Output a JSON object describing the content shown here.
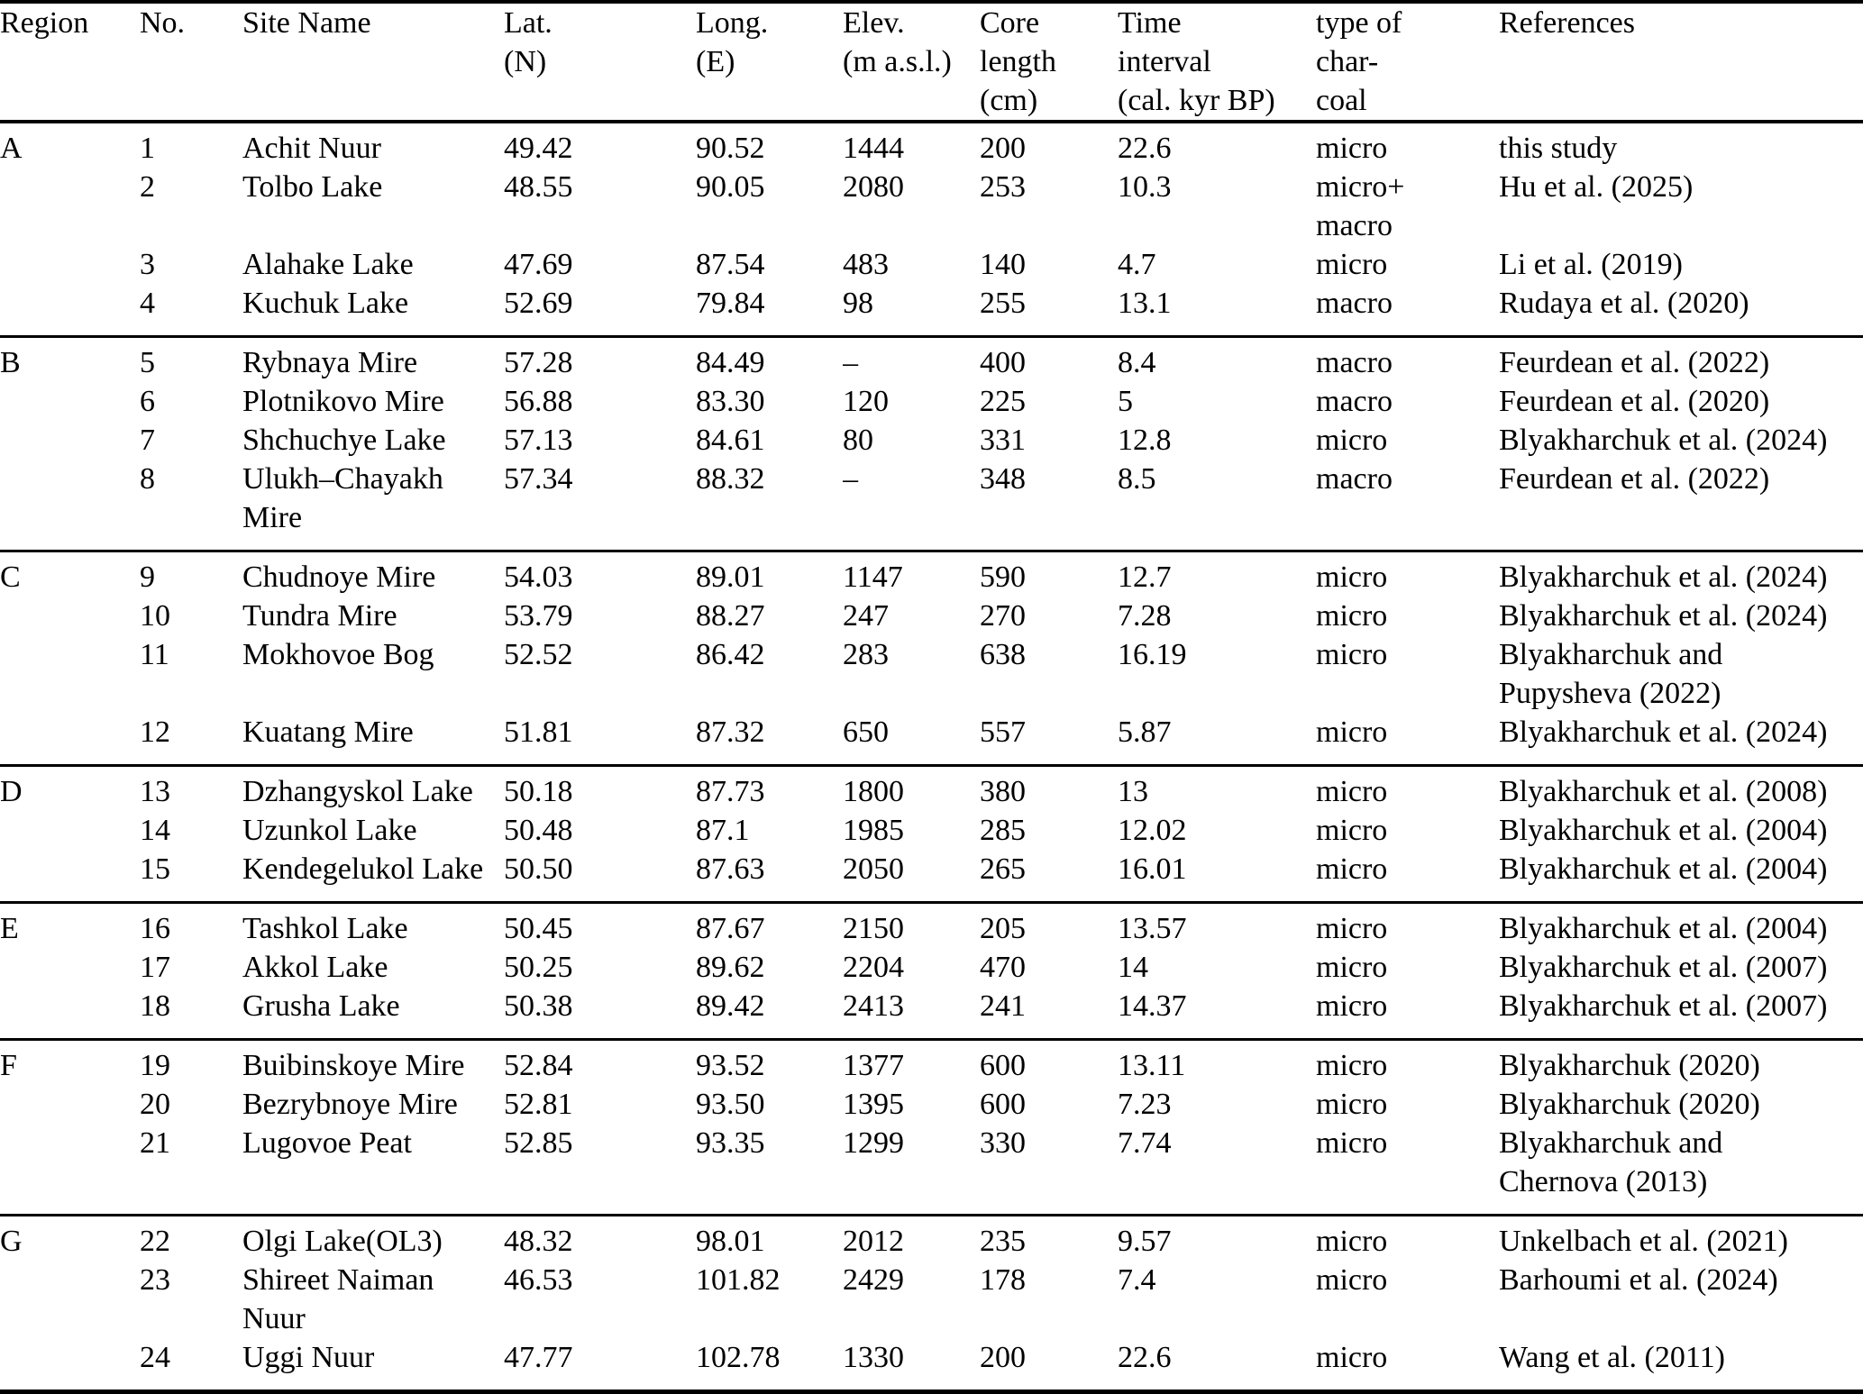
{
  "table": {
    "title": "study-sites-table",
    "columns": [
      {
        "id": "region",
        "lines": [
          "Region"
        ]
      },
      {
        "id": "no",
        "lines": [
          "No."
        ]
      },
      {
        "id": "site",
        "lines": [
          "Site Name"
        ]
      },
      {
        "id": "lat",
        "lines": [
          "Lat.",
          "(N)"
        ]
      },
      {
        "id": "long",
        "lines": [
          "Long.",
          "(E)"
        ]
      },
      {
        "id": "elev",
        "lines": [
          "Elev.",
          "(m a.s.l.)"
        ]
      },
      {
        "id": "core",
        "lines": [
          "Core",
          "length",
          "(cm)"
        ]
      },
      {
        "id": "time",
        "lines": [
          "Time",
          "interval",
          "(cal. kyr BP)"
        ]
      },
      {
        "id": "charcoal",
        "lines": [
          "type of",
          "char-",
          "coal"
        ]
      },
      {
        "id": "refs",
        "lines": [
          "References"
        ]
      }
    ],
    "groups": [
      {
        "region": "A",
        "rows": [
          {
            "no": "1",
            "site": "Achit Nuur",
            "lat": "49.42",
            "long": "90.52",
            "elev": "1444",
            "core": "200",
            "time": "22.6",
            "charcoal": [
              "micro"
            ],
            "refs": [
              "this study"
            ]
          },
          {
            "no": "2",
            "site": "Tolbo Lake",
            "lat": "48.55",
            "long": "90.05",
            "elev": "2080",
            "core": "253",
            "time": "10.3",
            "charcoal": [
              "micro+",
              "macro"
            ],
            "refs": [
              "Hu et al. (2025)"
            ]
          },
          {
            "no": "3",
            "site": "Alahake Lake",
            "lat": "47.69",
            "long": "87.54",
            "elev": "483",
            "core": "140",
            "time": "4.7",
            "charcoal": [
              "micro"
            ],
            "refs": [
              "Li et al. (2019)"
            ]
          },
          {
            "no": "4",
            "site": "Kuchuk Lake",
            "lat": "52.69",
            "long": "79.84",
            "elev": "98",
            "core": "255",
            "time": "13.1",
            "charcoal": [
              "macro"
            ],
            "refs": [
              "Rudaya et al. (2020)"
            ]
          }
        ]
      },
      {
        "region": "B",
        "rows": [
          {
            "no": "5",
            "site": "Rybnaya Mire",
            "lat": "57.28",
            "long": "84.49",
            "elev": "–",
            "core": "400",
            "time": "8.4",
            "charcoal": [
              "macro"
            ],
            "refs": [
              "Feurdean et al. (2022)"
            ]
          },
          {
            "no": "6",
            "site": "Plotnikovo Mire",
            "lat": "56.88",
            "long": "83.30",
            "elev": "120",
            "core": "225",
            "time": "5",
            "charcoal": [
              "macro"
            ],
            "refs": [
              "Feurdean et al. (2020)"
            ]
          },
          {
            "no": "7",
            "site": "Shchuchye Lake",
            "lat": "57.13",
            "long": "84.61",
            "elev": "80",
            "core": "331",
            "time": "12.8",
            "charcoal": [
              "micro"
            ],
            "refs": [
              "Blyakharchuk et al. (2024)"
            ]
          },
          {
            "no": "8",
            "site": "Ulukh–Chayakh Mire",
            "lat": "57.34",
            "long": "88.32",
            "elev": "–",
            "core": "348",
            "time": "8.5",
            "charcoal": [
              "macro"
            ],
            "refs": [
              "Feurdean et al. (2022)"
            ]
          }
        ]
      },
      {
        "region": "C",
        "rows": [
          {
            "no": "9",
            "site": "Chudnoye Mire",
            "lat": "54.03",
            "long": "89.01",
            "elev": "1147",
            "core": "590",
            "time": "12.7",
            "charcoal": [
              "micro"
            ],
            "refs": [
              "Blyakharchuk et al. (2024)"
            ]
          },
          {
            "no": "10",
            "site": "Tundra Mire",
            "lat": "53.79",
            "long": "88.27",
            "elev": "247",
            "core": "270",
            "time": "7.28",
            "charcoal": [
              "micro"
            ],
            "refs": [
              "Blyakharchuk et al. (2024)"
            ]
          },
          {
            "no": "11",
            "site": "Mokhovoe Bog",
            "lat": "52.52",
            "long": "86.42",
            "elev": "283",
            "core": "638",
            "time": "16.19",
            "charcoal": [
              "micro"
            ],
            "refs": [
              "Blyakharchuk and",
              "Pupysheva (2022)"
            ]
          },
          {
            "no": "12",
            "site": "Kuatang Mire",
            "lat": "51.81",
            "long": "87.32",
            "elev": "650",
            "core": "557",
            "time": "5.87",
            "charcoal": [
              "micro"
            ],
            "refs": [
              "Blyakharchuk et al. (2024)"
            ]
          }
        ]
      },
      {
        "region": "D",
        "rows": [
          {
            "no": "13",
            "site": "Dzhangyskol Lake",
            "lat": "50.18",
            "long": "87.73",
            "elev": "1800",
            "core": "380",
            "time": "13",
            "charcoal": [
              "micro"
            ],
            "refs": [
              "Blyakharchuk et al. (2008)"
            ]
          },
          {
            "no": "14",
            "site": "Uzunkol Lake",
            "lat": "50.48",
            "long": "87.1",
            "elev": "1985",
            "core": "285",
            "time": "12.02",
            "charcoal": [
              "micro"
            ],
            "refs": [
              "Blyakharchuk et al. (2004)"
            ]
          },
          {
            "no": "15",
            "site": "Kendegelukol Lake",
            "lat": "50.50",
            "long": "87.63",
            "elev": "2050",
            "core": "265",
            "time": "16.01",
            "charcoal": [
              "micro"
            ],
            "refs": [
              "Blyakharchuk et al. (2004)"
            ]
          }
        ]
      },
      {
        "region": "E",
        "rows": [
          {
            "no": "16",
            "site": "Tashkol Lake",
            "lat": "50.45",
            "long": "87.67",
            "elev": "2150",
            "core": "205",
            "time": "13.57",
            "charcoal": [
              "micro"
            ],
            "refs": [
              "Blyakharchuk et al. (2004)"
            ]
          },
          {
            "no": "17",
            "site": "Akkol Lake",
            "lat": "50.25",
            "long": "89.62",
            "elev": "2204",
            "core": "470",
            "time": "14",
            "charcoal": [
              "micro"
            ],
            "refs": [
              "Blyakharchuk et al. (2007)"
            ]
          },
          {
            "no": "18",
            "site": "Grusha Lake",
            "lat": "50.38",
            "long": "89.42",
            "elev": "2413",
            "core": "241",
            "time": "14.37",
            "charcoal": [
              "micro"
            ],
            "refs": [
              "Blyakharchuk et al. (2007)"
            ]
          }
        ]
      },
      {
        "region": "F",
        "rows": [
          {
            "no": "19",
            "site": "Buibinskoye Mire",
            "lat": "52.84",
            "long": "93.52",
            "elev": "1377",
            "core": "600",
            "time": "13.11",
            "charcoal": [
              "micro"
            ],
            "refs": [
              "Blyakharchuk (2020)"
            ]
          },
          {
            "no": "20",
            "site": "Bezrybnoye Mire",
            "lat": "52.81",
            "long": "93.50",
            "elev": "1395",
            "core": "600",
            "time": "7.23",
            "charcoal": [
              "micro"
            ],
            "refs": [
              "Blyakharchuk (2020)"
            ]
          },
          {
            "no": "21",
            "site": "Lugovoe Peat",
            "lat": "52.85",
            "long": "93.35",
            "elev": "1299",
            "core": "330",
            "time": "7.74",
            "charcoal": [
              "micro"
            ],
            "refs": [
              "Blyakharchuk and",
              "Chernova (2013)"
            ]
          }
        ]
      },
      {
        "region": "G",
        "rows": [
          {
            "no": "22",
            "site": "Olgi Lake(OL3)",
            "lat": "48.32",
            "long": "98.01",
            "elev": "2012",
            "core": "235",
            "time": "9.57",
            "charcoal": [
              "micro"
            ],
            "refs": [
              "Unkelbach et al. (2021)"
            ]
          },
          {
            "no": "23",
            "site": "Shireet Naiman Nuur",
            "lat": "46.53",
            "long": "101.82",
            "elev": "2429",
            "core": "178",
            "time": "7.4",
            "charcoal": [
              "micro"
            ],
            "refs": [
              "Barhoumi et al. (2024)"
            ]
          },
          {
            "no": "24",
            "site": "Uggi Nuur",
            "lat": "47.77",
            "long": "102.78",
            "elev": "1330",
            "core": "200",
            "time": "22.6",
            "charcoal": [
              "micro"
            ],
            "refs": [
              "Wang et al. (2011)"
            ]
          }
        ]
      }
    ]
  }
}
